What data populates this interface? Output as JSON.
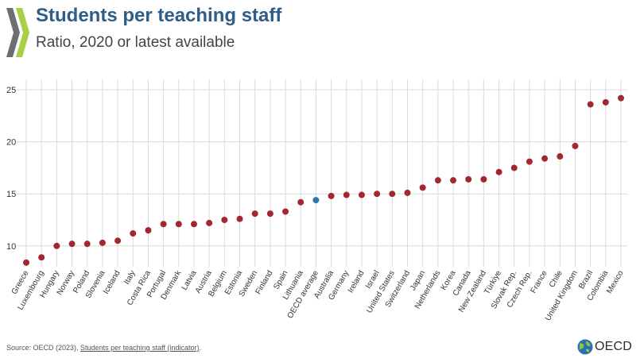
{
  "header": {
    "title": "Students per teaching staff",
    "subtitle": "Ratio, 2020 or latest available"
  },
  "colors": {
    "series_point": "#a0282e",
    "highlight_point": "#2e77a8",
    "title": "#2e5d87",
    "chevron_dark": "#6d6e71",
    "chevron_light": "#a8cf45",
    "grid": "#dadada"
  },
  "chart_data": {
    "type": "scatter",
    "categories": [
      "Greece",
      "Luxembourg",
      "Hungary",
      "Norway",
      "Poland",
      "Slovenia",
      "Iceland",
      "Italy",
      "Costa Rica",
      "Portugal",
      "Denmark",
      "Latvia",
      "Austria",
      "Belgium",
      "Estonia",
      "Sweden",
      "Finland",
      "Spain",
      "Lithuania",
      "OECD average",
      "Australia",
      "Germany",
      "Ireland",
      "Israel",
      "United States",
      "Switzerland",
      "Japan",
      "Netherlands",
      "Korea",
      "Canada",
      "New Zealand",
      "Türkiye",
      "Slovak Rep.",
      "Czech Rep.",
      "France",
      "Chile",
      "United Kingdom",
      "Brazil",
      "Colombia",
      "Mexico"
    ],
    "values": [
      8.4,
      8.9,
      10.0,
      10.2,
      10.2,
      10.3,
      10.5,
      11.2,
      11.5,
      12.1,
      12.1,
      12.1,
      12.2,
      12.5,
      12.6,
      13.1,
      13.1,
      13.3,
      14.2,
      14.4,
      14.8,
      14.9,
      14.9,
      15.0,
      15.0,
      15.1,
      15.6,
      16.3,
      16.3,
      16.4,
      16.4,
      17.1,
      17.5,
      18.1,
      18.4,
      18.6,
      19.6,
      23.6,
      23.8,
      24.2
    ],
    "highlight": "OECD average",
    "title": "Students per teaching staff",
    "subtitle": "Ratio, 2020 or latest available",
    "xlabel": "",
    "ylabel": "",
    "yticks": [
      10,
      15,
      20,
      25
    ],
    "ylim": [
      8,
      26
    ],
    "grid": "vertical and horizontal"
  },
  "footer": {
    "source_prefix": "Source: OECD (2023), ",
    "source_link": "Students per teaching staff (indicator)",
    "source_suffix": ".",
    "logo_text": "OECD",
    "logo_icon": "globe-icon"
  }
}
